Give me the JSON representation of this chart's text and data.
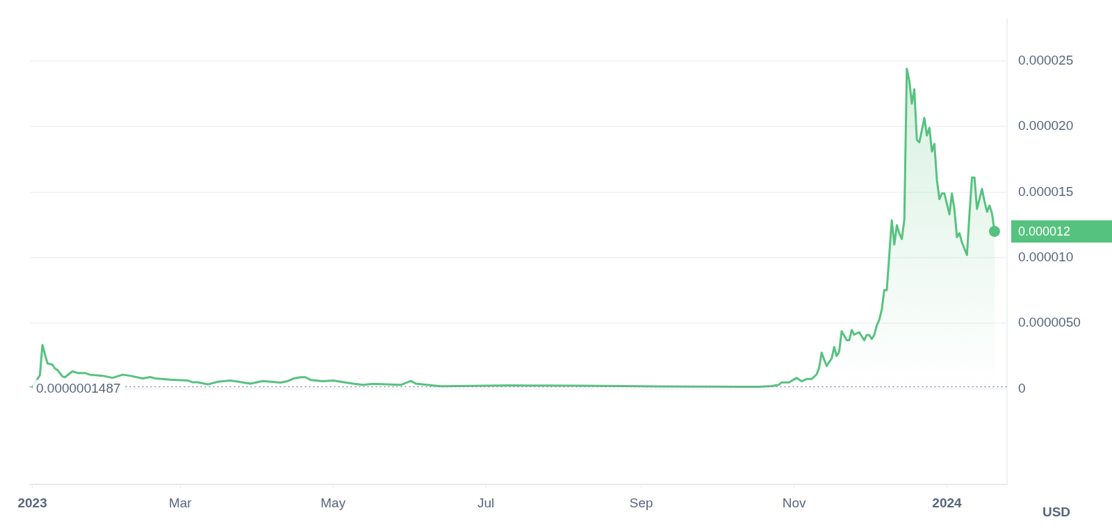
{
  "chart_data": {
    "type": "area",
    "ylabel": "USD",
    "x": [
      "2023-01-01",
      "2023-01-04",
      "2023-01-05",
      "2023-01-07",
      "2023-01-09",
      "2023-01-10",
      "2023-01-11",
      "2023-01-13",
      "2023-01-14",
      "2023-01-17",
      "2023-01-19",
      "2023-01-22",
      "2023-01-24",
      "2023-01-29",
      "2023-02-02",
      "2023-02-06",
      "2023-02-09",
      "2023-02-14",
      "2023-02-17",
      "2023-02-19",
      "2023-02-25",
      "2023-03-04",
      "2023-03-06",
      "2023-03-08",
      "2023-03-12",
      "2023-03-16",
      "2023-03-21",
      "2023-03-23",
      "2023-03-29",
      "2023-04-03",
      "2023-04-10",
      "2023-04-13",
      "2023-04-15",
      "2023-04-18",
      "2023-04-20",
      "2023-04-22",
      "2023-04-27",
      "2023-05-01",
      "2023-05-09",
      "2023-05-13",
      "2023-05-17",
      "2023-05-28",
      "2023-06-01",
      "2023-06-03",
      "2023-06-13",
      "2023-06-25",
      "2023-07-10",
      "2023-07-25",
      "2023-08-09",
      "2023-08-24",
      "2023-09-08",
      "2023-09-23",
      "2023-10-08",
      "2023-10-18",
      "2023-10-23",
      "2023-10-26",
      "2023-10-27",
      "2023-10-30",
      "2023-11-02",
      "2023-11-04",
      "2023-11-06",
      "2023-11-08",
      "2023-11-10",
      "2023-11-11",
      "2023-11-12",
      "2023-11-13",
      "2023-11-14",
      "2023-11-16",
      "2023-11-17",
      "2023-11-18",
      "2023-11-19",
      "2023-11-20",
      "2023-11-22",
      "2023-11-23",
      "2023-11-24",
      "2023-11-25",
      "2023-11-27",
      "2023-11-29",
      "2023-11-30",
      "2023-12-01",
      "2023-12-02",
      "2023-12-03",
      "2023-12-04",
      "2023-12-05",
      "2023-12-06",
      "2023-12-07",
      "2023-12-08",
      "2023-12-09",
      "2023-12-10",
      "2023-12-11",
      "2023-12-12",
      "2023-12-13",
      "2023-12-14",
      "2023-12-15",
      "2023-12-16",
      "2023-12-17",
      "2023-12-18",
      "2023-12-19",
      "2023-12-20",
      "2023-12-21",
      "2023-12-23",
      "2023-12-24",
      "2023-12-25",
      "2023-12-26",
      "2023-12-27",
      "2023-12-28",
      "2023-12-29",
      "2023-12-30",
      "2023-12-31",
      "2024-01-02",
      "2024-01-03",
      "2024-01-04",
      "2024-01-05",
      "2024-01-06",
      "2024-01-07",
      "2024-01-09",
      "2024-01-10",
      "2024-01-11",
      "2024-01-12",
      "2024-01-13",
      "2024-01-15",
      "2024-01-16",
      "2024-01-17",
      "2024-01-18",
      "2024-01-19",
      "2024-01-20"
    ],
    "series": [
      {
        "color": "#56c27f",
        "values": [
          1.3e-07,
          1.04e-06,
          3.33e-06,
          1.94e-06,
          1.83e-06,
          1.54e-06,
          1.43e-06,
          9.4e-07,
          8.8e-07,
          1.33e-06,
          1.2e-06,
          1.2e-06,
          1.07e-06,
          9.9e-07,
          8.3e-07,
          1.07e-06,
          9.9e-07,
          7.9e-07,
          8.9e-07,
          7.9e-07,
          6.9e-07,
          6.3e-07,
          4.9e-07,
          4.9e-07,
          3.3e-07,
          5.3e-07,
          6.3e-07,
          5.7e-07,
          3.9e-07,
          5.9e-07,
          4.7e-07,
          5.9e-07,
          7.7e-07,
          8.8e-07,
          8.8e-07,
          6.7e-07,
          5.7e-07,
          6.3e-07,
          3.9e-07,
          2.9e-07,
          3.7e-07,
          2.9e-07,
          5.9e-07,
          3.9e-07,
          1.9e-07,
          2.2e-07,
          2.5e-07,
          2.4e-07,
          2.3e-07,
          2e-07,
          1.8e-07,
          1.6e-07,
          1.5e-07,
          1.487e-07,
          2e-07,
          3.1e-07,
          4.8e-07,
          4.8e-07,
          8.3e-07,
          5.7e-07,
          7.4e-07,
          7.4e-07,
          1.09e-06,
          1.6e-06,
          2.75e-06,
          2.23e-06,
          1.74e-06,
          2.31e-06,
          3.18e-06,
          2.5e-06,
          2.83e-06,
          4.39e-06,
          3.7e-06,
          3.7e-06,
          4.48e-06,
          4.13e-06,
          4.31e-06,
          3.7e-06,
          4.1e-06,
          4.1e-06,
          3.79e-06,
          4.1e-06,
          4.83e-06,
          5.26e-06,
          6.04e-06,
          7.52e-06,
          7.52e-06,
          1.02e-05,
          1.285e-05,
          1.1e-05,
          1.247e-05,
          1.186e-05,
          1.142e-05,
          1.29e-05,
          2.441e-05,
          2.349e-05,
          2.175e-05,
          2.284e-05,
          1.897e-05,
          1.88e-05,
          2.066e-05,
          1.932e-05,
          1.99e-05,
          1.81e-05,
          1.868e-05,
          1.594e-05,
          1.446e-05,
          1.49e-05,
          1.49e-05,
          1.33e-05,
          1.49e-05,
          1.368e-05,
          1.156e-05,
          1.186e-05,
          1.116e-05,
          1.02e-05,
          1.333e-05,
          1.611e-05,
          1.611e-05,
          1.371e-05,
          1.524e-05,
          1.429e-05,
          1.35e-05,
          1.397e-05,
          1.337e-05,
          1.2e-05
        ]
      }
    ],
    "xlim": [
      "2022-12-31",
      "2024-01-25"
    ],
    "xticks": [
      {
        "value": "2023-01-01",
        "label": "2023"
      },
      {
        "value": "2023-03-01",
        "label": "Mar"
      },
      {
        "value": "2023-05-01",
        "label": "May"
      },
      {
        "value": "2023-07-01",
        "label": "Jul"
      },
      {
        "value": "2023-09-01",
        "label": "Sep"
      },
      {
        "value": "2023-11-01",
        "label": "Nov"
      },
      {
        "value": "2024-01-01",
        "label": "2024"
      }
    ],
    "ylim": [
      -7.3e-06,
      2.82e-05
    ],
    "yticks": [
      0,
      {
        "value": 5e-06,
        "label": "0.0000050"
      },
      {
        "value": 1e-05,
        "label": "0.000010"
      },
      {
        "value": 1.5e-05,
        "label": "0.000015"
      },
      {
        "value": 2e-05,
        "label": "0.000020"
      },
      {
        "value": 2.5e-05,
        "label": "0.000025"
      }
    ],
    "ref_lines": [
      {
        "axis": "y",
        "value": 1.487e-07,
        "label": "0.0000001487",
        "line_style": "dotted",
        "color": "#8a93a6"
      }
    ],
    "annotations": [
      {
        "text": "0.000012",
        "x": "2024-01-20",
        "y": 1.2e-05
      }
    ],
    "grid": "y",
    "legend": false,
    "marker": "none",
    "line_style": "solid"
  }
}
